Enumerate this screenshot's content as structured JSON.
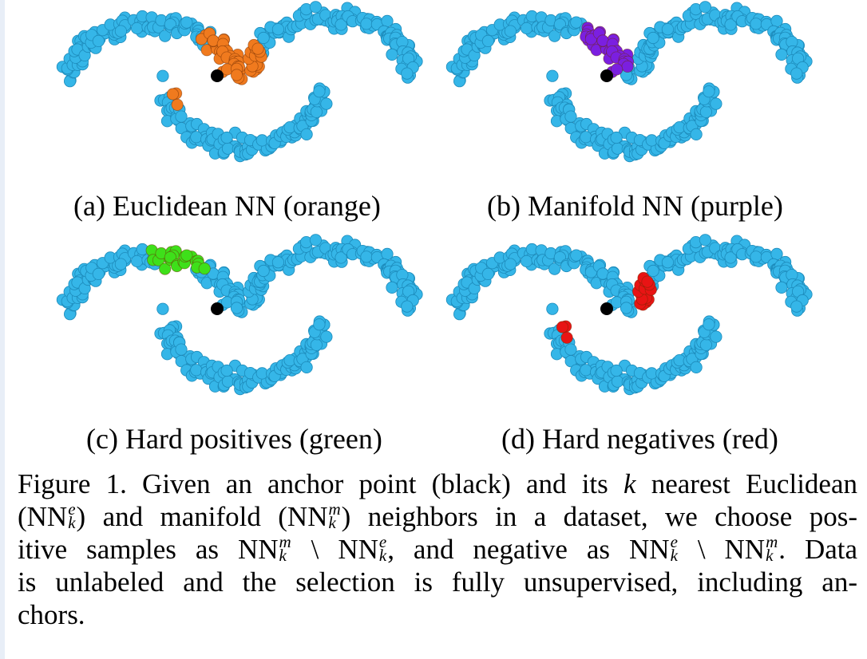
{
  "colors": {
    "base": "#35b6e8",
    "orange": "#f07a1e",
    "purple": "#7b1fe0",
    "green": "#3ee01a",
    "red": "#e81414",
    "anchor": "#000000"
  },
  "panels": [
    {
      "id": "a",
      "caption": "(a) Euclidean NN (orange)",
      "highlight": "orange"
    },
    {
      "id": "b",
      "caption": "(b) Manifold NN (purple)",
      "highlight": "purple"
    },
    {
      "id": "c",
      "caption": "(c) Hard positives (green)",
      "highlight": "green"
    },
    {
      "id": "d",
      "caption": "(d) Hard negatives (red)",
      "highlight": "red"
    }
  ],
  "caption": {
    "l1_a": "Figure 1. Given an anchor point (black) and its ",
    "l1_k": "k",
    "l1_b": " nearest Euclidean",
    "nn": "NN",
    "sub_k": "k",
    "sup_e": "e",
    "sup_m": "m",
    "l2_a": "(",
    "l2_b": ") and manifold (",
    "l2_c": ") neighbors in a dataset, we choose pos-",
    "l3_a": "itive samples as ",
    "setminus": "\\",
    "l3_b": ", and negative as ",
    "l3_c": ". Data",
    "l4": "is unlabeled and the selection is fully unsupervised, including an-",
    "l5": "chors."
  }
}
